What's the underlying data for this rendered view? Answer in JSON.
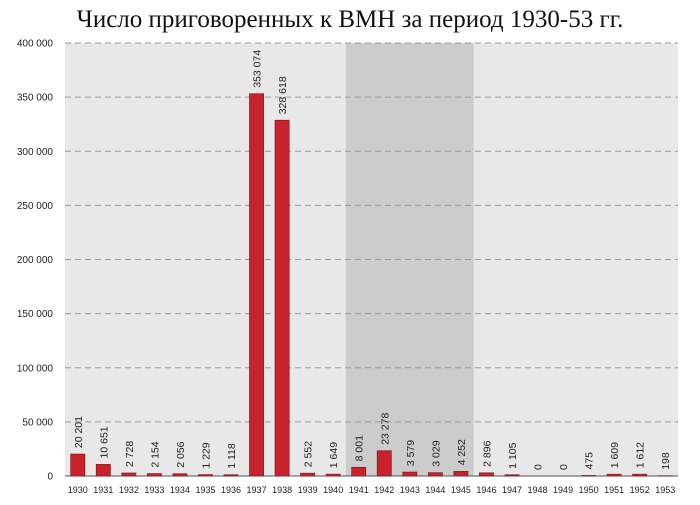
{
  "chart_data": {
    "type": "bar",
    "title": "Число приговоренных к ВМН за период 1930-53 гг.",
    "xlabel": "",
    "ylabel": "",
    "categories": [
      "1930",
      "1931",
      "1932",
      "1933",
      "1934",
      "1935",
      "1936",
      "1937",
      "1938",
      "1939",
      "1940",
      "1941",
      "1942",
      "1943",
      "1944",
      "1945",
      "1946",
      "1947",
      "1948",
      "1949",
      "1950",
      "1951",
      "1952",
      "1953"
    ],
    "values": [
      20201,
      10651,
      2728,
      2154,
      2056,
      1229,
      1118,
      353074,
      328618,
      2552,
      1649,
      8001,
      23278,
      3579,
      3029,
      4252,
      2896,
      1105,
      0,
      0,
      475,
      1609,
      1612,
      198
    ],
    "value_labels": [
      "20 201",
      "10 651",
      "2 728",
      "2 154",
      "2 056",
      "1 229",
      "1 118",
      "353 074",
      "328 618",
      "2 552",
      "1 649",
      "8 001",
      "23 278",
      "3 579",
      "3 029",
      "4 252",
      "2 896",
      "1 105",
      "0",
      "0",
      "475",
      "1 609",
      "1 612",
      "198"
    ],
    "ylim": [
      0,
      400000
    ],
    "yticks": [
      0,
      50000,
      100000,
      150000,
      200000,
      250000,
      300000,
      350000,
      400000
    ],
    "ytick_labels": [
      "0",
      "50 000",
      "100 000",
      "150 000",
      "200 000",
      "250 000",
      "300 000",
      "350 000",
      "400 000"
    ],
    "highlight_range": [
      "1941",
      "1945"
    ],
    "grid": true,
    "legend": "none",
    "colors": {
      "bar": "#c8232c",
      "bar_edge": "#8e1a20",
      "plot_bg": "#e8e8e8",
      "highlight_bg": "#cccccc",
      "grid": "#9a9a9a"
    }
  }
}
